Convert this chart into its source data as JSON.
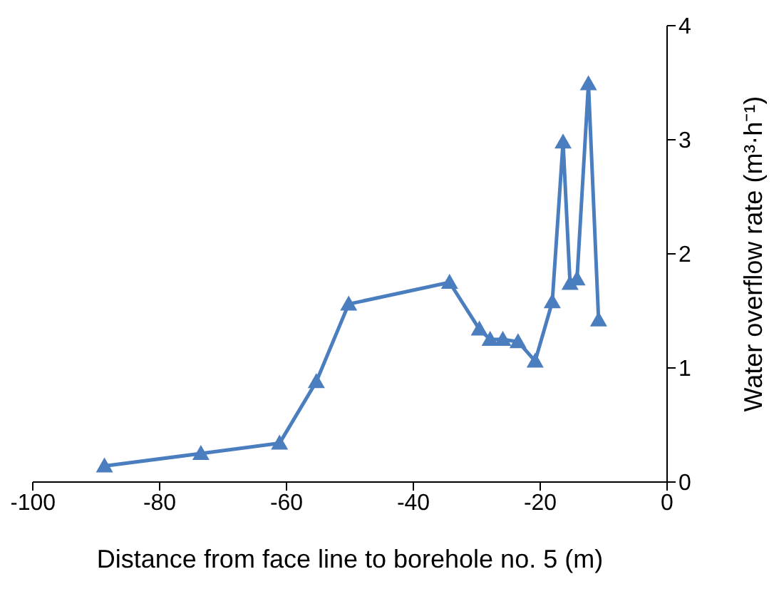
{
  "chart_data": {
    "type": "line",
    "xlabel": "Distance from face line to borehole no. 5 (m)",
    "ylabel": "Water overflow rate (m³·h⁻¹)",
    "x": [
      -88.7,
      -73.5,
      -61.1,
      -55.3,
      -50.2,
      -34.3,
      -29.6,
      -27.9,
      -25.9,
      -23.5,
      -20.8,
      -18.1,
      -16.4,
      -15.3,
      -14.2,
      -12.4,
      -10.8
    ],
    "series": [
      {
        "color": "#4a7ebf",
        "values": [
          0.14,
          0.25,
          0.34,
          0.88,
          1.56,
          1.75,
          1.34,
          1.25,
          1.25,
          1.23,
          1.06,
          1.58,
          2.98,
          1.74,
          1.78,
          3.49,
          1.42
        ]
      }
    ],
    "xlim": [
      -100,
      0
    ],
    "xticks": [
      -100,
      -80,
      -60,
      -40,
      -20,
      0
    ],
    "ylim": [
      0,
      4
    ],
    "yticks": [
      0,
      1,
      2,
      3,
      4
    ],
    "marker": "triangle",
    "grid": false,
    "legend": false
  }
}
